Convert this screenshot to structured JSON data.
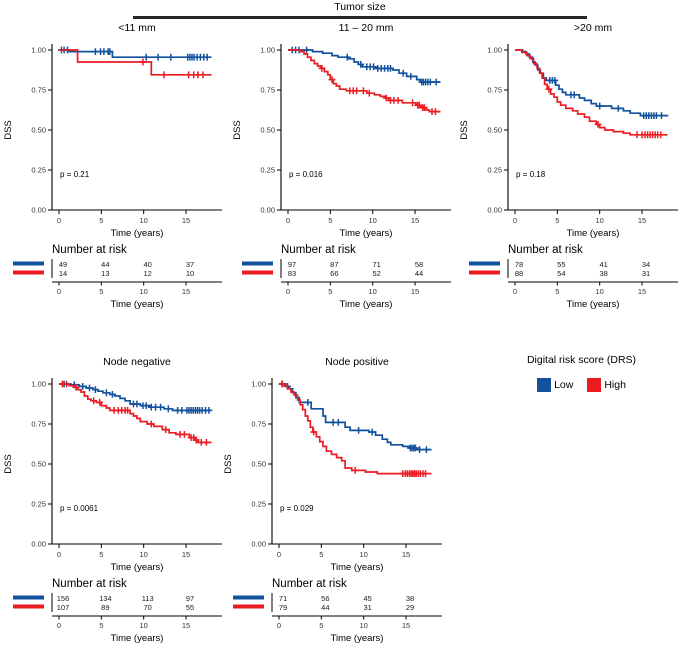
{
  "colors": {
    "low": "#11519E",
    "high": "#EB1B22",
    "axis": "#000000",
    "tick_text": "#333333",
    "header_line": "#262626"
  },
  "labels": {
    "header": "Tumor size",
    "y_axis": "DSS",
    "x_axis": "Time (years)",
    "risk_title": "Number at risk",
    "legend_title": "Digital risk score (DRS)",
    "legend_low": "Low",
    "legend_high": "High"
  },
  "axes": {
    "y_ticks": [
      "1.00",
      "0.75",
      "0.50",
      "0.25",
      "0.00"
    ],
    "y_values": [
      1,
      0.75,
      0.5,
      0.25,
      0
    ],
    "x_ticks": [
      "0",
      "5",
      "10",
      "15"
    ],
    "x_values": [
      0,
      5,
      10,
      15
    ],
    "t_max": 18,
    "ylim": [
      0,
      1
    ],
    "grid": false
  },
  "chart_data": [
    {
      "type": "line",
      "subtype": "kaplan_meier_step",
      "title": "<11 mm",
      "p_label": "p = 0.21",
      "xlabel": "Time (years)",
      "ylabel": "DSS",
      "series": [
        {
          "name": "Low",
          "color_key": "low",
          "steps": [
            [
              0,
              1
            ],
            [
              1.2,
              0.99
            ],
            [
              6.3,
              0.955
            ],
            [
              18,
              0.955
            ]
          ],
          "censors": [
            0.3,
            0.6,
            1.0,
            4.3,
            4.9,
            5.3,
            5.8,
            6.0,
            10.3,
            11.7,
            13.2,
            15.2,
            15.45,
            15.7,
            15.95,
            16.3,
            16.7,
            17.1,
            17.5
          ]
        },
        {
          "name": "High",
          "color_key": "high",
          "steps": [
            [
              0,
              1
            ],
            [
              2.2,
              0.925
            ],
            [
              10.9,
              0.845
            ],
            [
              18,
              0.845
            ]
          ],
          "censors": [
            9.9,
            12.4,
            15.3,
            15.9,
            16.4,
            17.0
          ]
        }
      ],
      "risk": {
        "low": [
          49,
          44,
          40,
          37
        ],
        "high": [
          14,
          13,
          12,
          10
        ]
      }
    },
    {
      "type": "line",
      "subtype": "kaplan_meier_step",
      "title": "11 – 20 mm",
      "p_label": "p = 0.016",
      "xlabel": "Time (years)",
      "ylabel": "DSS",
      "series": [
        {
          "name": "Low",
          "color_key": "low",
          "steps": [
            [
              0,
              1
            ],
            [
              2.9,
              0.99
            ],
            [
              4.1,
              0.98
            ],
            [
              5.2,
              0.965
            ],
            [
              5.9,
              0.955
            ],
            [
              7.2,
              0.945
            ],
            [
              7.8,
              0.925
            ],
            [
              8.3,
              0.91
            ],
            [
              8.8,
              0.895
            ],
            [
              10.3,
              0.885
            ],
            [
              12.4,
              0.875
            ],
            [
              13.1,
              0.855
            ],
            [
              14.0,
              0.835
            ],
            [
              15.2,
              0.815
            ],
            [
              15.6,
              0.8
            ],
            [
              18,
              0.8
            ]
          ],
          "censors": [
            0.5,
            0.9,
            1.3,
            2.2,
            7.0,
            8.6,
            9.3,
            9.7,
            10.1,
            10.6,
            11.0,
            11.4,
            11.8,
            12.1,
            13.6,
            14.5,
            15.8,
            16.0,
            16.25,
            16.5,
            16.8,
            17.5
          ]
        },
        {
          "name": "High",
          "color_key": "high",
          "steps": [
            [
              0,
              1
            ],
            [
              1.5,
              0.99
            ],
            [
              1.9,
              0.975
            ],
            [
              2.3,
              0.955
            ],
            [
              2.7,
              0.935
            ],
            [
              3.1,
              0.915
            ],
            [
              3.5,
              0.9
            ],
            [
              3.9,
              0.885
            ],
            [
              4.3,
              0.865
            ],
            [
              4.7,
              0.845
            ],
            [
              5.0,
              0.815
            ],
            [
              5.35,
              0.79
            ],
            [
              5.7,
              0.775
            ],
            [
              6.1,
              0.755
            ],
            [
              6.9,
              0.745
            ],
            [
              9.3,
              0.73
            ],
            [
              10.2,
              0.72
            ],
            [
              10.9,
              0.71
            ],
            [
              11.5,
              0.7
            ],
            [
              11.9,
              0.685
            ],
            [
              13.5,
              0.67
            ],
            [
              15.1,
              0.655
            ],
            [
              15.7,
              0.64
            ],
            [
              16.3,
              0.625
            ],
            [
              16.7,
              0.615
            ],
            [
              18,
              0.615
            ]
          ],
          "censors": [
            4.0,
            5.2,
            7.3,
            7.7,
            8.1,
            8.9,
            9.6,
            11.6,
            12.1,
            12.5,
            13.0,
            14.7,
            15.3,
            15.5,
            15.9,
            16.1,
            17.0,
            17.4
          ]
        }
      ],
      "risk": {
        "low": [
          97,
          87,
          71,
          58
        ],
        "high": [
          83,
          66,
          52,
          44
        ]
      }
    },
    {
      "type": "line",
      "subtype": "kaplan_meier_step",
      "title": ">20 mm",
      "p_label": "p = 0.18",
      "xlabel": "Time (years)",
      "ylabel": "DSS",
      "series": [
        {
          "name": "Low",
          "color_key": "low",
          "steps": [
            [
              0,
              1
            ],
            [
              0.9,
              0.99
            ],
            [
              1.3,
              0.975
            ],
            [
              1.7,
              0.955
            ],
            [
              2.1,
              0.925
            ],
            [
              2.4,
              0.905
            ],
            [
              2.7,
              0.875
            ],
            [
              3.0,
              0.855
            ],
            [
              3.35,
              0.825
            ],
            [
              3.7,
              0.81
            ],
            [
              4.8,
              0.78
            ],
            [
              5.2,
              0.755
            ],
            [
              5.6,
              0.735
            ],
            [
              6.0,
              0.72
            ],
            [
              7.6,
              0.7
            ],
            [
              8.2,
              0.685
            ],
            [
              9.0,
              0.665
            ],
            [
              9.6,
              0.65
            ],
            [
              11.4,
              0.635
            ],
            [
              12.8,
              0.62
            ],
            [
              13.6,
              0.605
            ],
            [
              14.8,
              0.59
            ],
            [
              18,
              0.585
            ]
          ],
          "censors": [
            4.1,
            4.4,
            4.7,
            6.6,
            7.0,
            10.0,
            12.2,
            15.2,
            15.5,
            15.8,
            16.1,
            16.4,
            16.7,
            17.3
          ]
        },
        {
          "name": "High",
          "color_key": "high",
          "steps": [
            [
              0,
              1
            ],
            [
              0.8,
              0.985
            ],
            [
              1.4,
              0.965
            ],
            [
              1.8,
              0.945
            ],
            [
              2.2,
              0.915
            ],
            [
              2.6,
              0.885
            ],
            [
              2.9,
              0.855
            ],
            [
              3.2,
              0.825
            ],
            [
              3.5,
              0.785
            ],
            [
              3.8,
              0.755
            ],
            [
              4.2,
              0.725
            ],
            [
              4.6,
              0.705
            ],
            [
              5.0,
              0.675
            ],
            [
              5.4,
              0.655
            ],
            [
              6.0,
              0.635
            ],
            [
              6.8,
              0.62
            ],
            [
              7.4,
              0.6
            ],
            [
              8.2,
              0.58
            ],
            [
              8.8,
              0.555
            ],
            [
              9.6,
              0.535
            ],
            [
              10.0,
              0.515
            ],
            [
              10.6,
              0.5
            ],
            [
              11.6,
              0.49
            ],
            [
              12.8,
              0.48
            ],
            [
              13.6,
              0.47
            ],
            [
              18,
              0.47
            ]
          ],
          "censors": [
            4.0,
            9.8,
            14.4,
            15.0,
            15.35,
            15.65,
            15.95,
            16.25,
            16.55,
            16.85,
            17.2
          ]
        }
      ],
      "risk": {
        "low": [
          78,
          55,
          41,
          34
        ],
        "high": [
          88,
          54,
          38,
          31
        ]
      }
    },
    {
      "type": "line",
      "subtype": "kaplan_meier_step",
      "title": "Node negative",
      "p_label": "p = 0.0061",
      "xlabel": "Time (years)",
      "ylabel": "DSS",
      "series": [
        {
          "name": "Low",
          "color_key": "low",
          "steps": [
            [
              0,
              1
            ],
            [
              1.4,
              0.995
            ],
            [
              2.4,
              0.985
            ],
            [
              3.2,
              0.975
            ],
            [
              4.0,
              0.965
            ],
            [
              4.6,
              0.955
            ],
            [
              5.2,
              0.945
            ],
            [
              6.0,
              0.935
            ],
            [
              6.6,
              0.925
            ],
            [
              7.2,
              0.91
            ],
            [
              7.8,
              0.895
            ],
            [
              8.4,
              0.875
            ],
            [
              9.6,
              0.865
            ],
            [
              10.8,
              0.855
            ],
            [
              12.4,
              0.845
            ],
            [
              13.4,
              0.835
            ],
            [
              18,
              0.835
            ]
          ],
          "censors": [
            0.6,
            1.8,
            2.8,
            3.6,
            4.3,
            5.6,
            6.3,
            8.8,
            9.2,
            9.9,
            10.3,
            10.9,
            11.4,
            12.0,
            12.9,
            14.0,
            14.5,
            15.1,
            15.35,
            15.6,
            15.85,
            16.1,
            16.35,
            16.6,
            16.9,
            17.3,
            17.7
          ]
        },
        {
          "name": "High",
          "color_key": "high",
          "steps": [
            [
              0,
              1
            ],
            [
              1.2,
              0.99
            ],
            [
              1.8,
              0.98
            ],
            [
              2.2,
              0.965
            ],
            [
              2.6,
              0.95
            ],
            [
              3.0,
              0.925
            ],
            [
              3.4,
              0.905
            ],
            [
              3.8,
              0.895
            ],
            [
              4.4,
              0.885
            ],
            [
              5.0,
              0.865
            ],
            [
              5.6,
              0.85
            ],
            [
              6.0,
              0.835
            ],
            [
              8.4,
              0.815
            ],
            [
              8.8,
              0.8
            ],
            [
              9.2,
              0.785
            ],
            [
              9.6,
              0.765
            ],
            [
              10.4,
              0.75
            ],
            [
              11.2,
              0.735
            ],
            [
              12.2,
              0.715
            ],
            [
              13.0,
              0.695
            ],
            [
              13.8,
              0.685
            ],
            [
              15.4,
              0.665
            ],
            [
              16.0,
              0.65
            ],
            [
              16.4,
              0.635
            ],
            [
              18,
              0.635
            ]
          ],
          "censors": [
            0.4,
            0.9,
            2.0,
            4.1,
            4.8,
            6.5,
            7.0,
            7.4,
            7.8,
            8.1,
            10.9,
            12.6,
            14.3,
            14.8,
            15.6,
            15.9,
            16.2,
            16.8,
            17.4
          ]
        }
      ],
      "risk": {
        "low": [
          156,
          134,
          113,
          97
        ],
        "high": [
          107,
          89,
          70,
          55
        ]
      }
    },
    {
      "type": "line",
      "subtype": "kaplan_meier_step",
      "title": "Node positive",
      "p_label": "p = 0.029",
      "xlabel": "Time (years)",
      "ylabel": "DSS",
      "series": [
        {
          "name": "Low",
          "color_key": "low",
          "steps": [
            [
              0,
              1
            ],
            [
              0.8,
              0.985
            ],
            [
              1.2,
              0.97
            ],
            [
              1.6,
              0.945
            ],
            [
              2.0,
              0.915
            ],
            [
              2.4,
              0.885
            ],
            [
              3.8,
              0.845
            ],
            [
              5.2,
              0.8
            ],
            [
              5.5,
              0.76
            ],
            [
              7.8,
              0.73
            ],
            [
              8.4,
              0.71
            ],
            [
              10.6,
              0.7
            ],
            [
              11.4,
              0.68
            ],
            [
              12.2,
              0.655
            ],
            [
              12.8,
              0.635
            ],
            [
              13.2,
              0.62
            ],
            [
              14.6,
              0.61
            ],
            [
              15.4,
              0.6
            ],
            [
              16.2,
              0.59
            ],
            [
              18,
              0.59
            ]
          ],
          "censors": [
            0.35,
            1.0,
            3.4,
            6.4,
            7.0,
            9.4,
            11.0,
            15.5,
            15.7,
            15.9,
            16.1,
            16.6,
            17.4
          ]
        },
        {
          "name": "High",
          "color_key": "high",
          "steps": [
            [
              0,
              1
            ],
            [
              0.6,
              0.99
            ],
            [
              1.0,
              0.97
            ],
            [
              1.4,
              0.95
            ],
            [
              1.8,
              0.93
            ],
            [
              2.2,
              0.9
            ],
            [
              2.5,
              0.87
            ],
            [
              2.8,
              0.84
            ],
            [
              3.1,
              0.8
            ],
            [
              3.4,
              0.77
            ],
            [
              3.7,
              0.73
            ],
            [
              4.0,
              0.7
            ],
            [
              4.4,
              0.67
            ],
            [
              4.8,
              0.64
            ],
            [
              5.2,
              0.61
            ],
            [
              5.6,
              0.58
            ],
            [
              6.2,
              0.56
            ],
            [
              6.8,
              0.54
            ],
            [
              7.4,
              0.52
            ],
            [
              7.8,
              0.475
            ],
            [
              8.6,
              0.46
            ],
            [
              10.2,
              0.45
            ],
            [
              11.6,
              0.44
            ],
            [
              18,
              0.44
            ]
          ],
          "censors": [
            0.4,
            4.1,
            9.0,
            14.6,
            14.9,
            15.15,
            15.4,
            15.6,
            15.8,
            16.0,
            16.2,
            16.45,
            16.7,
            17.0,
            17.3
          ]
        }
      ],
      "risk": {
        "low": [
          71,
          56,
          45,
          38
        ],
        "high": [
          79,
          44,
          31,
          29
        ]
      }
    }
  ]
}
